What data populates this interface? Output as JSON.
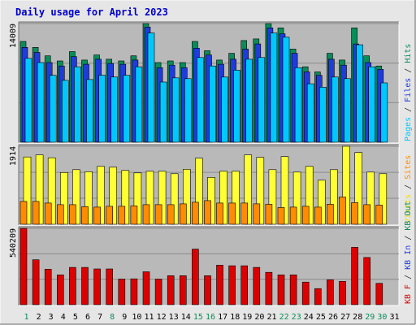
{
  "chart_data": {
    "type": "bar",
    "title": "Daily usage for April 2023",
    "categories": [
      "1",
      "2",
      "3",
      "4",
      "5",
      "6",
      "7",
      "8",
      "9",
      "10",
      "11",
      "12",
      "13",
      "14",
      "15",
      "16",
      "17",
      "18",
      "19",
      "20",
      "21",
      "22",
      "23",
      "24",
      "25",
      "26",
      "27",
      "28",
      "29",
      "30",
      "31"
    ],
    "weekend_days": [
      "1",
      "8",
      "15",
      "16",
      "22",
      "23",
      "29",
      "30"
    ],
    "panels": [
      {
        "name": "top",
        "max_label": "14009",
        "ylim": [
          0,
          14009
        ],
        "right_label_parts": [
          {
            "text": "Pages",
            "color": "#00c8ff"
          },
          {
            "text": " / ",
            "color": "#303030"
          },
          {
            "text": "Files",
            "color": "#1e3cdc"
          },
          {
            "text": " / ",
            "color": "#303030"
          },
          {
            "text": "Hits",
            "color": "#0a8c5a"
          }
        ],
        "series": [
          {
            "name": "Hits",
            "color": "#0a8c5a",
            "values": [
              11900,
              11200,
              10200,
              9600,
              10700,
              9700,
              10300,
              9800,
              9600,
              10200,
              14009,
              9400,
              9600,
              9400,
              11900,
              10800,
              9700,
              10500,
              12000,
              12200,
              14009,
              13500,
              11000,
              8900,
              8300,
              10500,
              9700,
              13500,
              10200,
              9000,
              0
            ]
          },
          {
            "name": "Files",
            "color": "#1e3cdc",
            "values": [
              11200,
              10600,
              9400,
              9000,
              10100,
              9200,
              9800,
              9300,
              9200,
              9700,
              13600,
              8800,
              9100,
              8800,
              11100,
              10300,
              9200,
              9800,
              11000,
              11600,
              13500,
              12800,
              10500,
              8300,
              7900,
              9800,
              9100,
              11600,
              9400,
              8600,
              0
            ]
          },
          {
            "name": "Pages",
            "color": "#00c8ff",
            "values": [
              9900,
              9400,
              7900,
              7300,
              8900,
              7400,
              7900,
              7700,
              7900,
              8900,
              12900,
              7100,
              7600,
              7500,
              10000,
              9000,
              7700,
              8500,
              9800,
              10000,
              12900,
              12400,
              8800,
              6900,
              6500,
              7700,
              7500,
              11500,
              8900,
              7000,
              0
            ]
          }
        ]
      },
      {
        "name": "middle",
        "max_label": "1914",
        "ylim": [
          0,
          1914
        ],
        "right_label_parts": [
          {
            "text": "Visits",
            "color": "#f0e000"
          },
          {
            "text": " / ",
            "color": "#303030"
          },
          {
            "text": "Sites",
            "color": "#ff8c00"
          }
        ],
        "series": [
          {
            "name": "Visits",
            "color": "#ffff33",
            "values": [
              1650,
              1700,
              1630,
              1270,
              1340,
              1290,
              1420,
              1400,
              1320,
              1260,
              1300,
              1300,
              1240,
              1350,
              1620,
              1150,
              1300,
              1300,
              1700,
              1640,
              1340,
              1660,
              1280,
              1420,
              1080,
              1340,
              1914,
              1760,
              1280,
              1240,
              0
            ]
          },
          {
            "name": "Sites",
            "color": "#ff8c00",
            "values": [
              560,
              560,
              520,
              480,
              480,
              430,
              420,
              440,
              440,
              450,
              480,
              480,
              480,
              500,
              540,
              580,
              520,
              520,
              520,
              500,
              490,
              410,
              420,
              440,
              420,
              490,
              670,
              530,
              480,
              470,
              0
            ]
          }
        ]
      },
      {
        "name": "bottom",
        "max_label": "540209",
        "ylim": [
          0,
          540209
        ],
        "right_label_parts": [
          {
            "text": "KB F",
            "color": "#dd0000"
          },
          {
            "text": " / ",
            "color": "#303030"
          },
          {
            "text": "KB In",
            "color": "#1e3cdc"
          },
          {
            "text": " / ",
            "color": "#303030"
          },
          {
            "text": "KB Out",
            "color": "#0a8c5a"
          }
        ],
        "series": [
          {
            "name": "KB F",
            "color": "#dd0000",
            "values": [
              540209,
              318000,
              251000,
              211000,
              264000,
              264000,
              253000,
              253000,
              181000,
              183000,
              233000,
              181000,
              205000,
              205000,
              393000,
              205000,
              280000,
              275000,
              275000,
              264000,
              229000,
              211000,
              211000,
              160000,
              114000,
              176000,
              165000,
              406000,
              334000,
              151000,
              0
            ]
          }
        ]
      }
    ]
  }
}
